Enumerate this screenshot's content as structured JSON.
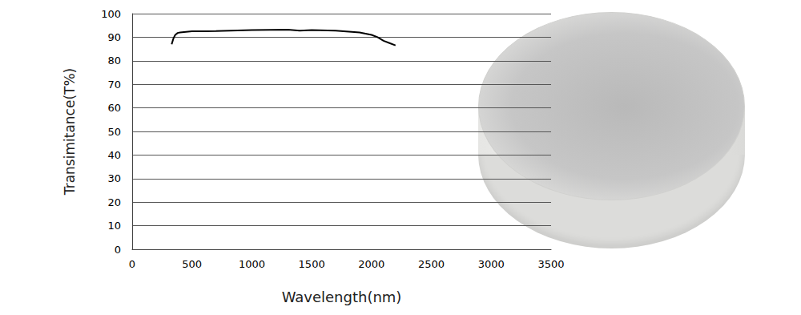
{
  "chart_data": {
    "type": "line",
    "x_label": "Wavelength(nm)",
    "y_label": "Transimitance(T%)",
    "x": [
      330,
      345,
      360,
      380,
      400,
      500,
      700,
      1000,
      1300,
      1400,
      1500,
      1700,
      1900,
      2000,
      2050,
      2100,
      2150,
      2200
    ],
    "values": [
      87,
      89.5,
      91,
      91.8,
      92,
      92.5,
      92.6,
      93,
      93.2,
      92.8,
      93,
      92.8,
      92,
      91,
      90,
      88.5,
      87.5,
      86.5
    ],
    "color": "#000000",
    "xlim": [
      0,
      3500
    ],
    "xticks": [
      0,
      500,
      1000,
      1500,
      2000,
      2500,
      3000,
      3500
    ],
    "ylim": [
      0,
      100
    ],
    "yticks": [
      0,
      10,
      20,
      30,
      40,
      50,
      60,
      70,
      80,
      90,
      100
    ],
    "grid": true
  }
}
